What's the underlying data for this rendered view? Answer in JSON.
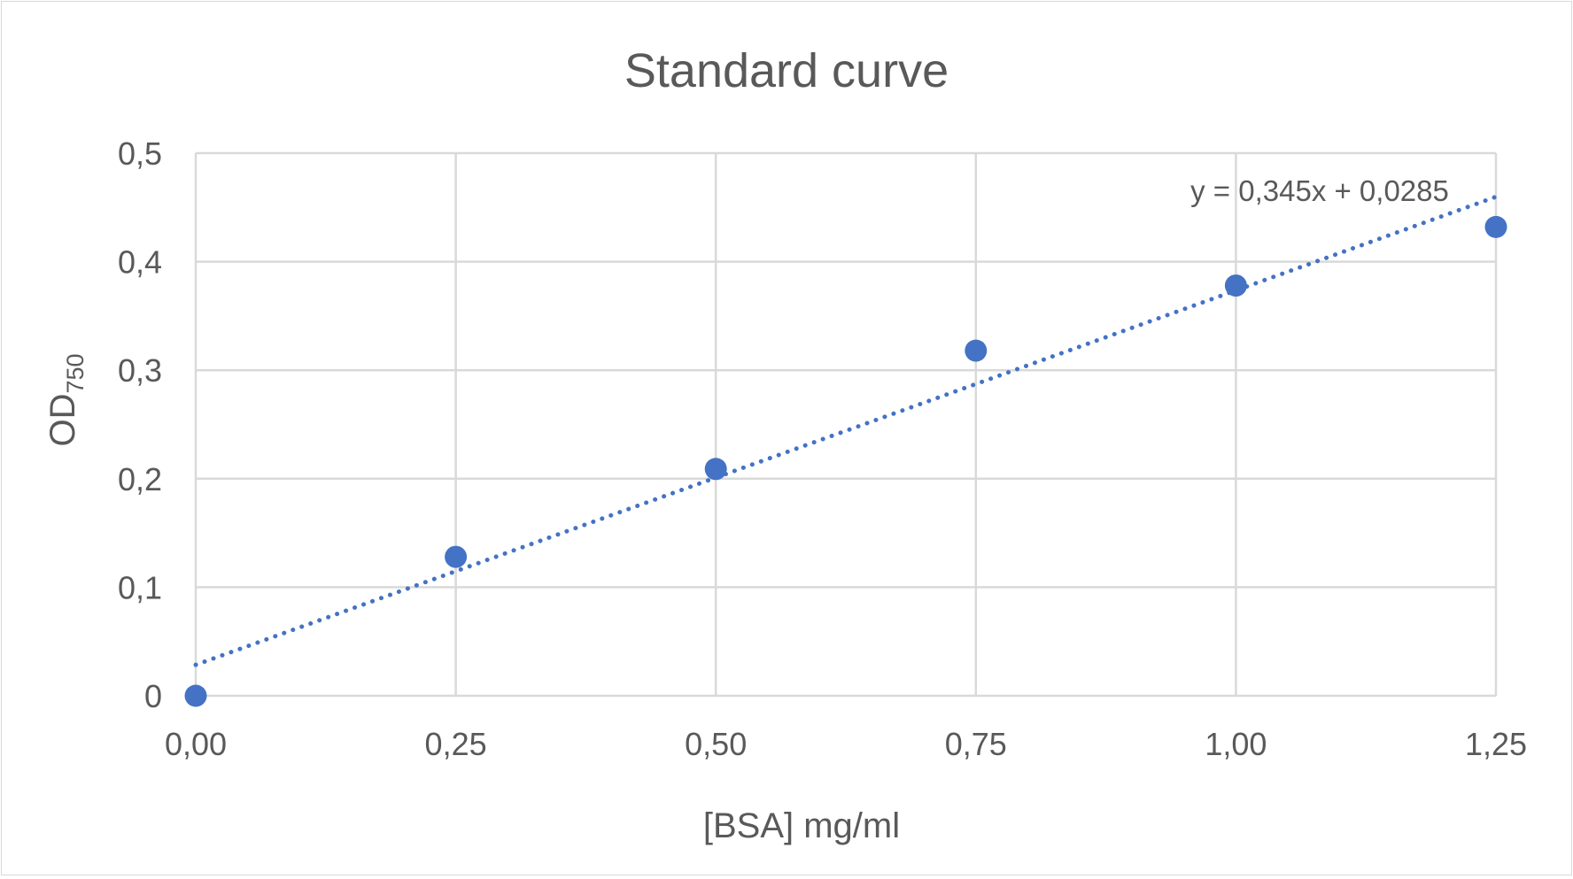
{
  "chart_data": {
    "type": "scatter",
    "title": "Standard curve",
    "xlabel": "[BSA] mg/ml",
    "ylabel": "OD",
    "ylabel_subscript": "750",
    "xlim": [
      0,
      1.25
    ],
    "ylim": [
      0,
      0.5
    ],
    "x_ticks": [
      0,
      0.25,
      0.5,
      0.75,
      1.0,
      1.25
    ],
    "x_tick_labels": [
      "0,00",
      "0,25",
      "0,50",
      "0,75",
      "1,00",
      "1,25"
    ],
    "y_ticks": [
      0,
      0.1,
      0.2,
      0.3,
      0.4,
      0.5
    ],
    "y_tick_labels": [
      "0",
      "0,1",
      "0,2",
      "0,3",
      "0,4",
      "0,5"
    ],
    "grid": true,
    "series": [
      {
        "x": [
          0,
          0.25,
          0.5,
          0.75,
          1.0,
          1.25
        ],
        "y": [
          0,
          0.128,
          0.209,
          0.318,
          0.378,
          0.432
        ],
        "color": "#4472c4"
      }
    ],
    "trendline": {
      "type": "linear",
      "slope": 0.345,
      "intercept": 0.0285,
      "style": "dotted",
      "color": "#4472c4",
      "equation_label": "y = 0,345x + 0,0285"
    }
  }
}
